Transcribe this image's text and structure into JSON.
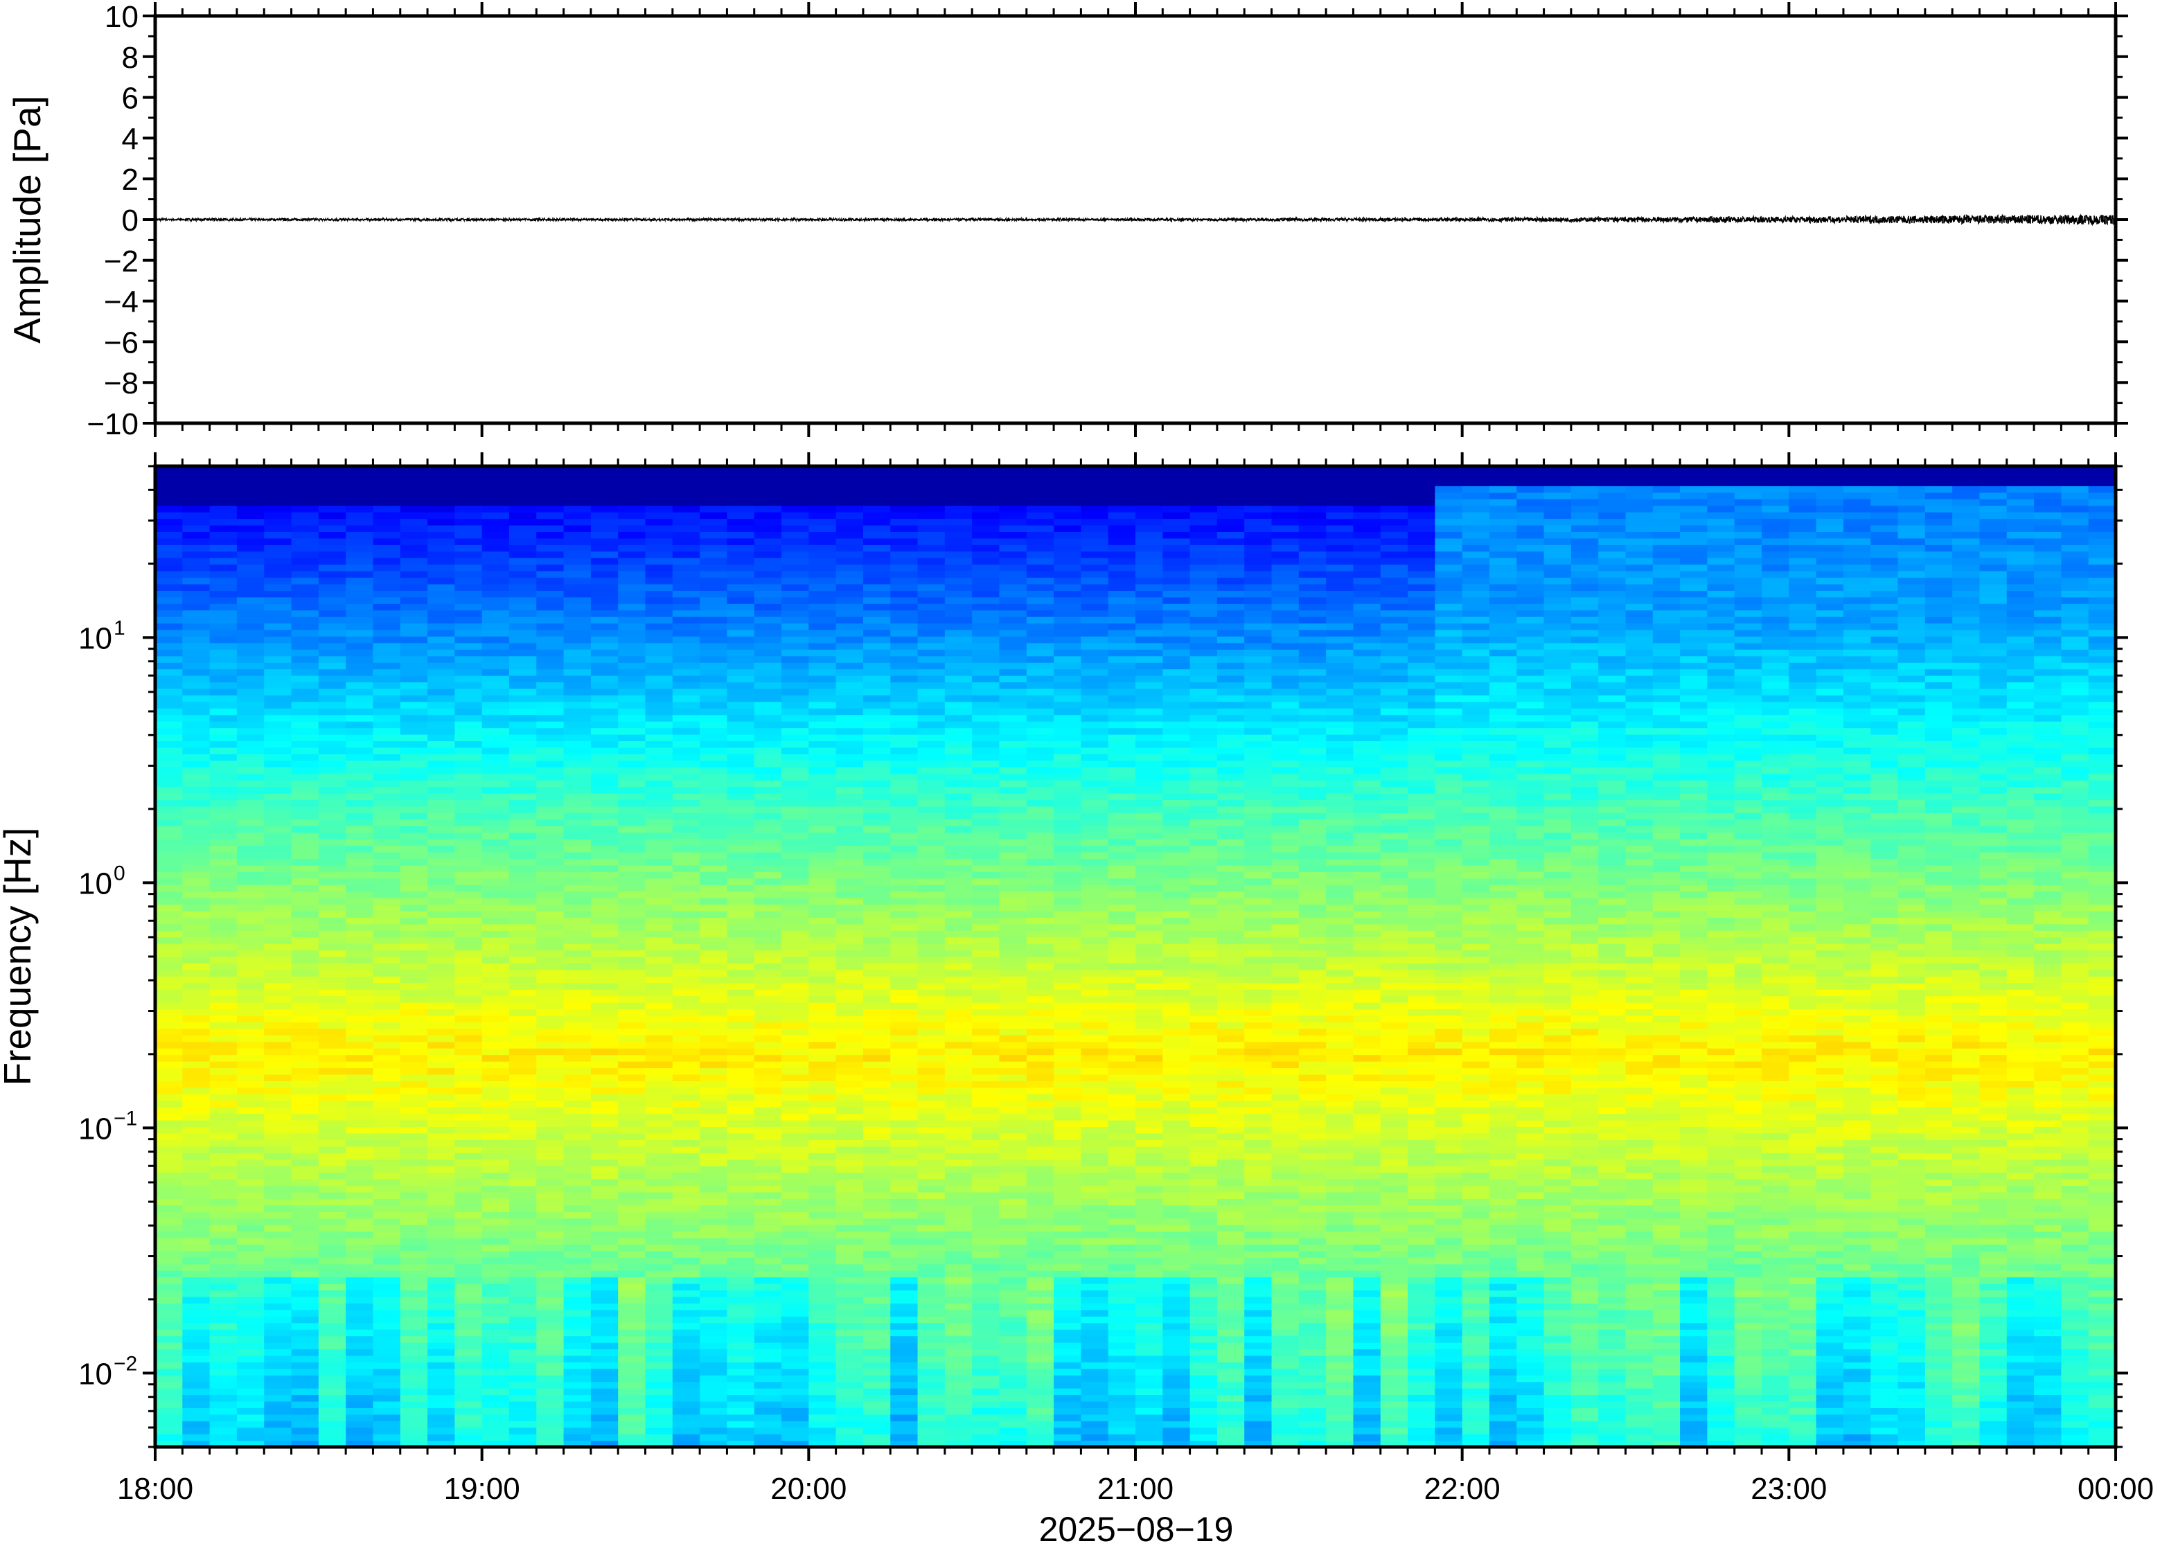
{
  "chart_data": [
    {
      "type": "line",
      "ylabel": "Amplitude [Pa]",
      "ylim": [
        -10,
        10
      ],
      "yticks": [
        10,
        8,
        6,
        4,
        2,
        0,
        -2,
        -4,
        -6,
        -8,
        -10
      ],
      "ytick_labels": [
        "10",
        "8",
        "6",
        "4",
        "2",
        "0",
        "−2",
        "−4",
        "−6",
        "−8",
        "−10"
      ],
      "xlim": [
        "2025-08-19 18:00",
        "2025-08-20 00:00"
      ],
      "series": [
        {
          "color": "#000000",
          "x": [
            "18:00",
            "19:00",
            "20:00",
            "21:00",
            "22:00",
            "22:30",
            "23:00",
            "23:30",
            "00:00"
          ],
          "values": [
            0,
            0,
            0,
            0,
            0,
            0,
            0,
            0,
            0
          ],
          "envelope_pa": [
            0.05,
            0.05,
            0.05,
            0.05,
            0.08,
            0.12,
            0.15,
            0.2,
            0.25
          ]
        }
      ],
      "grid": false
    },
    {
      "type": "heatmap",
      "ylabel": "Frequency [Hz]",
      "yscale": "log",
      "ylim": [
        0.005,
        50
      ],
      "yticks": [
        {
          "base": "10",
          "exp": "−2"
        },
        {
          "base": "10",
          "exp": "−1"
        },
        {
          "base": "10",
          "exp": "0"
        },
        {
          "base": "10",
          "exp": "1"
        }
      ],
      "xlabel": "2025−08−19",
      "xticks": [
        "18:00",
        "19:00",
        "20:00",
        "21:00",
        "22:00",
        "23:00",
        "00:00"
      ],
      "xlim": [
        "2025-08-19 18:00",
        "2025-08-20 00:00"
      ],
      "colormap": "jet",
      "grid": false,
      "features": {
        "energy_peak_hz": 0.2,
        "high_freq_activity_start": "21:57"
      }
    }
  ]
}
